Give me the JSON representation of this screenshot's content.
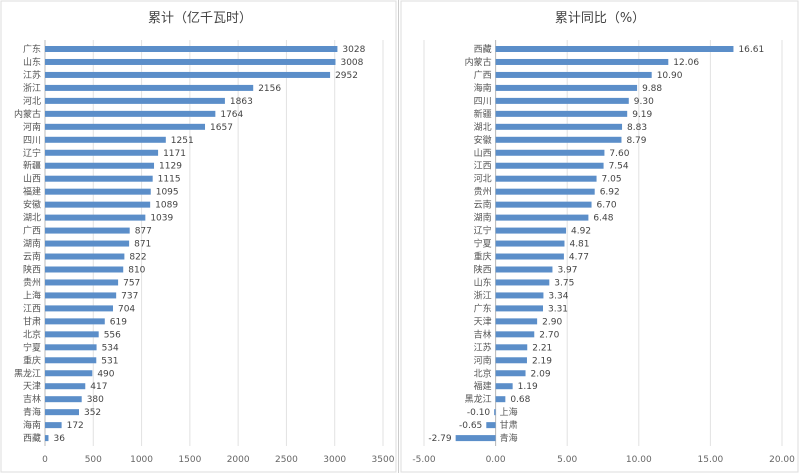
{
  "chart_data": [
    {
      "type": "bar",
      "orientation": "horizontal",
      "title": "累计（亿千瓦时）",
      "xlim": [
        0,
        3500
      ],
      "xticks": [
        0,
        500,
        1000,
        1500,
        2000,
        2500,
        3000,
        3500
      ],
      "categories": [
        "广东",
        "山东",
        "江苏",
        "浙江",
        "河北",
        "内蒙古",
        "河南",
        "四川",
        "辽宁",
        "新疆",
        "山西",
        "福建",
        "安徽",
        "湖北",
        "广西",
        "湖南",
        "云南",
        "陕西",
        "贵州",
        "上海",
        "江西",
        "甘肃",
        "北京",
        "宁夏",
        "重庆",
        "黑龙江",
        "天津",
        "吉林",
        "青海",
        "海南",
        "西藏"
      ],
      "values": [
        3028,
        3008,
        2952,
        2156,
        1863,
        1764,
        1657,
        1251,
        1171,
        1129,
        1115,
        1095,
        1089,
        1039,
        877,
        871,
        822,
        810,
        757,
        737,
        704,
        619,
        556,
        534,
        531,
        490,
        417,
        380,
        352,
        172,
        36
      ],
      "color": "#5b8ec9"
    },
    {
      "type": "bar",
      "orientation": "horizontal",
      "title": "累计同比（%）",
      "xlim": [
        -5,
        20
      ],
      "xticks": [
        "-5.00",
        "0.00",
        "5.00",
        "10.00",
        "15.00",
        "20.00"
      ],
      "categories": [
        "西藏",
        "内蒙古",
        "广西",
        "海南",
        "四川",
        "新疆",
        "湖北",
        "安徽",
        "山西",
        "江西",
        "河北",
        "贵州",
        "云南",
        "湖南",
        "辽宁",
        "宁夏",
        "重庆",
        "陕西",
        "山东",
        "浙江",
        "广东",
        "天津",
        "吉林",
        "江苏",
        "河南",
        "北京",
        "福建",
        "黑龙江",
        "上海",
        "甘肃",
        "青海"
      ],
      "values": [
        16.61,
        12.06,
        10.9,
        9.88,
        9.3,
        9.19,
        8.83,
        8.79,
        7.6,
        7.54,
        7.05,
        6.92,
        6.7,
        6.48,
        4.92,
        4.81,
        4.77,
        3.97,
        3.75,
        3.34,
        3.31,
        2.9,
        2.7,
        2.21,
        2.19,
        2.09,
        1.19,
        0.68,
        -0.1,
        -0.65,
        -2.79
      ],
      "color": "#5b8ec9"
    }
  ]
}
